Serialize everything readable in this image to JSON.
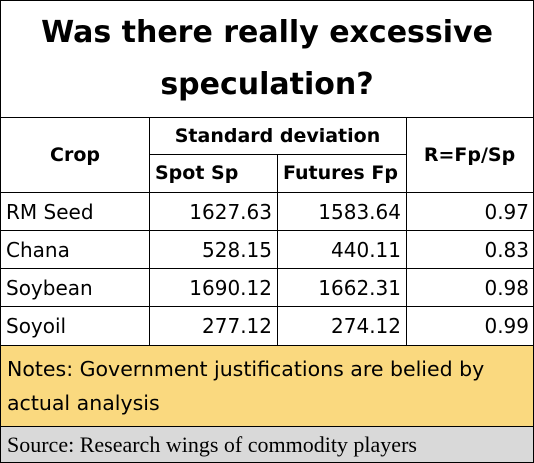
{
  "title": {
    "line1": "Was there really excessive",
    "line2": "speculation?"
  },
  "table": {
    "headers": {
      "crop": "Crop",
      "group": "Standard deviation",
      "spot": "Spot Sp",
      "futures": "Futures Fp",
      "ratio": "R=Fp/Sp"
    },
    "rows": [
      {
        "crop": "RM Seed",
        "spot": "1627.63",
        "futures": "1583.64",
        "ratio": "0.97"
      },
      {
        "crop": "Chana",
        "spot": "528.15",
        "futures": "440.11",
        "ratio": "0.83"
      },
      {
        "crop": "Soybean",
        "spot": "1690.12",
        "futures": "1662.31",
        "ratio": "0.98"
      },
      {
        "crop": "Soyoil",
        "spot": "277.12",
        "futures": "274.12",
        "ratio": "0.99"
      }
    ]
  },
  "notes": "Notes: Government justifications are belied by actual analysis",
  "source": "Source: Research wings of commodity players",
  "colors": {
    "notes_background": "#fad97f",
    "source_background": "#d9d9d9"
  }
}
